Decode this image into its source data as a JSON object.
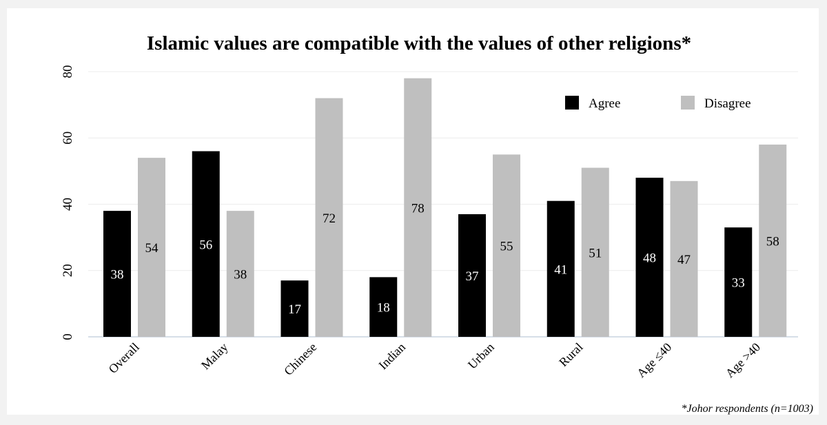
{
  "chart_data": {
    "type": "bar",
    "title": "Islamic values are compatible with the values of other religions*",
    "xlabel": "",
    "ylabel": "",
    "ylim": [
      0,
      80
    ],
    "yticks": [
      0,
      20,
      40,
      60,
      80
    ],
    "grid": true,
    "legend_position": "top-right",
    "categories": [
      "Overall",
      "Malay",
      "Chinese",
      "Indian",
      "Urban",
      "Rural",
      "Age ≤40",
      "Age >40"
    ],
    "series": [
      {
        "name": "Agree",
        "color": "#000000",
        "label_color": "#ffffff",
        "values": [
          38,
          56,
          17,
          18,
          37,
          41,
          48,
          33
        ]
      },
      {
        "name": "Disagree",
        "color": "#bfbfbf",
        "label_color": "#000000",
        "values": [
          54,
          38,
          72,
          78,
          55,
          51,
          47,
          58
        ]
      }
    ],
    "footnote": "*Johor respondents (n=1003)"
  }
}
